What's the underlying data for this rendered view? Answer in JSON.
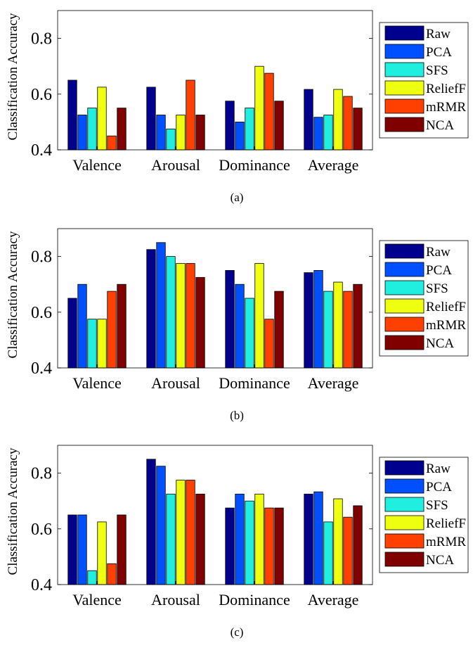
{
  "chart_data": [
    {
      "type": "bar",
      "caption": "(a)",
      "ylabel": "Classification Accuracy",
      "ylim": [
        0.4,
        0.9
      ],
      "yticks": [
        "0.4",
        "0.6",
        "0.8"
      ],
      "categories": [
        "Valence",
        "Arousal",
        "Dominance",
        "Average"
      ],
      "legend": "right",
      "series": [
        {
          "name": "Raw",
          "color": "#00008f",
          "values": [
            0.65,
            0.625,
            0.575,
            0.617
          ]
        },
        {
          "name": "PCA",
          "color": "#0050ff",
          "values": [
            0.525,
            0.525,
            0.5,
            0.517
          ]
        },
        {
          "name": "SFS",
          "color": "#20efdf",
          "values": [
            0.55,
            0.475,
            0.55,
            0.525
          ]
        },
        {
          "name": "ReliefF",
          "color": "#efff10",
          "values": [
            0.625,
            0.525,
            0.7,
            0.617
          ]
        },
        {
          "name": "mRMR",
          "color": "#ff4000",
          "values": [
            0.45,
            0.65,
            0.675,
            0.592
          ]
        },
        {
          "name": "NCA",
          "color": "#800000",
          "values": [
            0.55,
            0.525,
            0.575,
            0.55
          ]
        }
      ]
    },
    {
      "type": "bar",
      "caption": "(b)",
      "ylabel": "Classification Accuracy",
      "ylim": [
        0.4,
        0.9
      ],
      "yticks": [
        "0.4",
        "0.6",
        "0.8"
      ],
      "categories": [
        "Valence",
        "Arousal",
        "Dominance",
        "Average"
      ],
      "legend": "right",
      "series": [
        {
          "name": "Raw",
          "color": "#00008f",
          "values": [
            0.65,
            0.825,
            0.75,
            0.742
          ]
        },
        {
          "name": "PCA",
          "color": "#0050ff",
          "values": [
            0.7,
            0.85,
            0.7,
            0.75
          ]
        },
        {
          "name": "SFS",
          "color": "#20efdf",
          "values": [
            0.575,
            0.8,
            0.65,
            0.675
          ]
        },
        {
          "name": "ReliefF",
          "color": "#efff10",
          "values": [
            0.575,
            0.775,
            0.775,
            0.708
          ]
        },
        {
          "name": "mRMR",
          "color": "#ff4000",
          "values": [
            0.675,
            0.775,
            0.575,
            0.675
          ]
        },
        {
          "name": "NCA",
          "color": "#800000",
          "values": [
            0.7,
            0.725,
            0.675,
            0.7
          ]
        }
      ]
    },
    {
      "type": "bar",
      "caption": "(c)",
      "ylabel": "Classification Accuracy",
      "ylim": [
        0.4,
        0.9
      ],
      "yticks": [
        "0.4",
        "0.6",
        "0.8"
      ],
      "categories": [
        "Valence",
        "Arousal",
        "Dominance",
        "Average"
      ],
      "legend": "right",
      "series": [
        {
          "name": "Raw",
          "color": "#00008f",
          "values": [
            0.65,
            0.85,
            0.675,
            0.725
          ]
        },
        {
          "name": "PCA",
          "color": "#0050ff",
          "values": [
            0.65,
            0.825,
            0.725,
            0.733
          ]
        },
        {
          "name": "SFS",
          "color": "#20efdf",
          "values": [
            0.45,
            0.725,
            0.7,
            0.625
          ]
        },
        {
          "name": "ReliefF",
          "color": "#efff10",
          "values": [
            0.625,
            0.775,
            0.725,
            0.708
          ]
        },
        {
          "name": "mRMR",
          "color": "#ff4000",
          "values": [
            0.475,
            0.775,
            0.675,
            0.642
          ]
        },
        {
          "name": "NCA",
          "color": "#800000",
          "values": [
            0.65,
            0.725,
            0.675,
            0.683
          ]
        }
      ]
    }
  ]
}
